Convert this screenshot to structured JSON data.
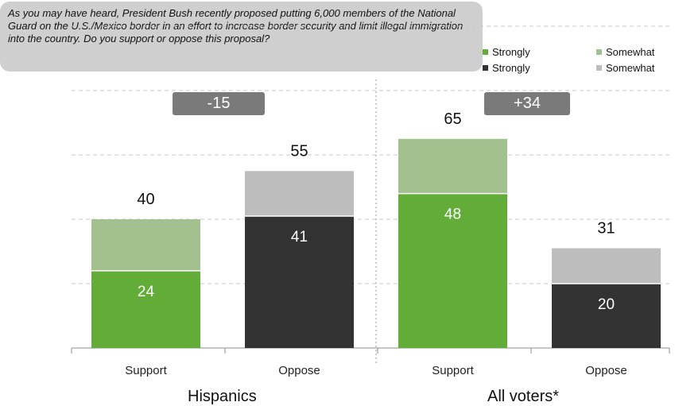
{
  "question": "As you may have heard, President Bush recently proposed putting 6,000 members of the National Guard on the U.S./Mexico border in an effort to increase border security and limit illegal immigration into the country.  Do you support or oppose this proposal?",
  "legend": [
    {
      "label": "Strongly",
      "color": "#62ad37"
    },
    {
      "label": "Somewhat",
      "color": "#a3c18e"
    },
    {
      "label": "Strongly",
      "color": "#333333"
    },
    {
      "label": "Somewhat",
      "color": "#bdbdbd"
    }
  ],
  "chart_data": {
    "type": "bar",
    "stacked": true,
    "ylim": [
      0,
      100
    ],
    "groups": [
      {
        "label": "Hispanics",
        "gap": "-15",
        "bars": [
          {
            "category": "Support",
            "total": 40,
            "strongly": 24,
            "somewhat": 16,
            "strongly_color": "#62ad37",
            "somewhat_color": "#a3c18e"
          },
          {
            "category": "Oppose",
            "total": 55,
            "strongly": 41,
            "somewhat": 14,
            "strongly_color": "#333333",
            "somewhat_color": "#bdbdbd"
          }
        ]
      },
      {
        "label": "All voters*",
        "gap": "+34",
        "bars": [
          {
            "category": "Support",
            "total": 65,
            "strongly": 48,
            "somewhat": 17,
            "strongly_color": "#62ad37",
            "somewhat_color": "#a3c18e"
          },
          {
            "category": "Oppose",
            "total": 31,
            "strongly": 20,
            "somewhat": 11,
            "strongly_color": "#333333",
            "somewhat_color": "#bdbdbd"
          }
        ]
      }
    ]
  }
}
